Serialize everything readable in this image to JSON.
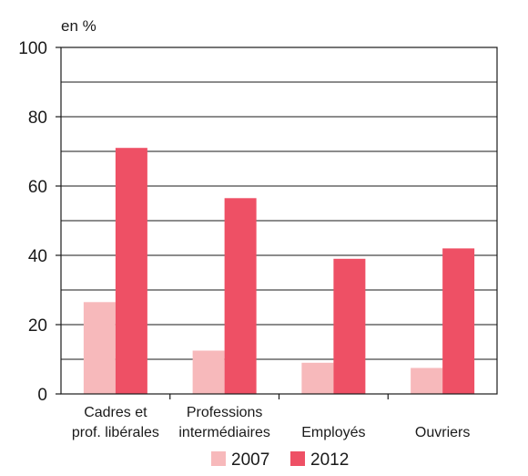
{
  "chart_data": {
    "type": "bar",
    "unit_label": "en %",
    "categories": [
      [
        "Cadres et",
        "prof. libérales"
      ],
      [
        "Professions",
        "intermédiaires"
      ],
      [
        "Employés"
      ],
      [
        "Ouvriers"
      ]
    ],
    "series": [
      {
        "name": "2007",
        "color": "#f7b9bb",
        "values": [
          26.5,
          12.5,
          9,
          7.5
        ]
      },
      {
        "name": "2012",
        "color": "#ee5065",
        "values": [
          71,
          56.5,
          39,
          42
        ]
      }
    ],
    "ylim": [
      0,
      100
    ],
    "yticks": [
      0,
      20,
      40,
      60,
      80,
      100
    ],
    "grid_step": 10,
    "grid": true,
    "legend_position": "bottom"
  }
}
